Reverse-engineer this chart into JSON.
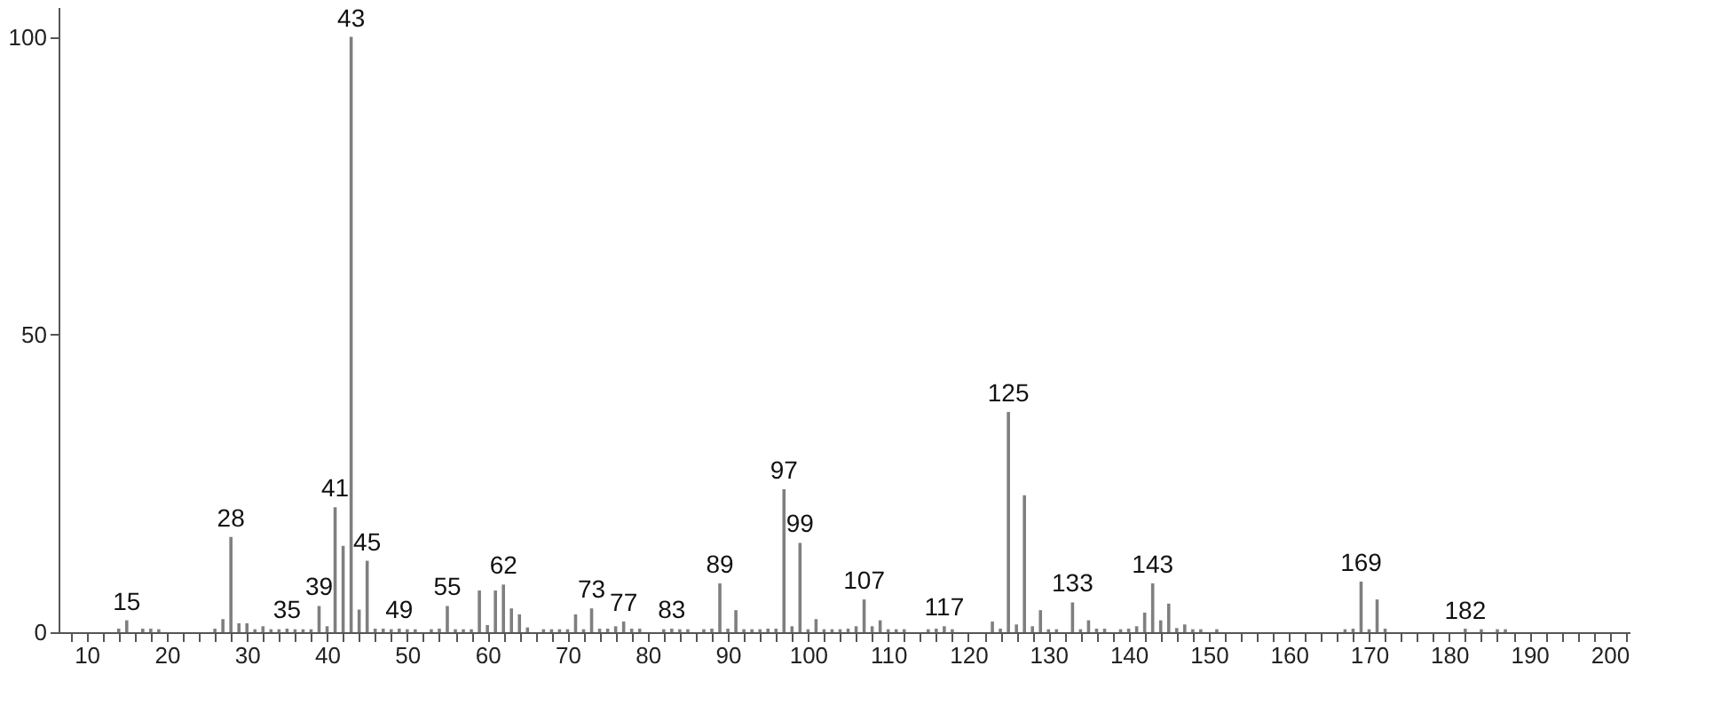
{
  "chart_data": {
    "type": "bar",
    "color": "#7f7f7f",
    "x": [
      14,
      15,
      17,
      18,
      19,
      26,
      27,
      28,
      29,
      30,
      31,
      32,
      33,
      34,
      35,
      36,
      37,
      38,
      39,
      40,
      41,
      42,
      43,
      44,
      45,
      46,
      47,
      48,
      49,
      50,
      51,
      53,
      54,
      55,
      56,
      57,
      58,
      59,
      60,
      61,
      62,
      63,
      64,
      65,
      67,
      68,
      69,
      70,
      71,
      72,
      73,
      74,
      75,
      76,
      77,
      78,
      79,
      82,
      83,
      84,
      85,
      87,
      88,
      89,
      90,
      91,
      92,
      93,
      94,
      95,
      96,
      97,
      98,
      99,
      100,
      101,
      102,
      103,
      104,
      105,
      106,
      107,
      108,
      109,
      110,
      111,
      112,
      115,
      116,
      117,
      118,
      123,
      124,
      125,
      126,
      127,
      128,
      129,
      130,
      131,
      133,
      134,
      135,
      136,
      137,
      139,
      140,
      141,
      142,
      143,
      144,
      145,
      146,
      147,
      148,
      149,
      151,
      167,
      168,
      169,
      170,
      171,
      172,
      182,
      184,
      186,
      187
    ],
    "values": [
      0.6,
      2,
      0.6,
      0.6,
      0.5,
      0.6,
      2.2,
      16,
      1.5,
      1.5,
      0.5,
      1,
      0.5,
      0.5,
      0.6,
      0.5,
      0.5,
      0.5,
      4.4,
      1,
      21,
      14.5,
      100,
      3.8,
      12,
      0.6,
      0.6,
      0.5,
      0.6,
      0.5,
      0.5,
      0.5,
      0.6,
      4.4,
      0.5,
      0.5,
      0.5,
      7,
      1.2,
      7,
      8,
      4,
      3,
      0.8,
      0.5,
      0.5,
      0.5,
      0.5,
      3,
      0.5,
      4,
      0.6,
      0.6,
      1,
      1.8,
      0.6,
      0.6,
      0.5,
      0.6,
      0.5,
      0.5,
      0.5,
      0.6,
      8.2,
      0.6,
      3.7,
      0.5,
      0.5,
      0.5,
      0.6,
      0.6,
      24,
      1,
      15,
      0.5,
      2.2,
      0.5,
      0.5,
      0.5,
      0.6,
      1,
      5.5,
      1,
      2,
      0.5,
      0.5,
      0.5,
      0.5,
      0.6,
      1,
      0.5,
      1.8,
      0.6,
      37,
      1.3,
      23,
      1,
      3.7,
      0.5,
      0.5,
      5,
      0.5,
      2,
      0.6,
      0.6,
      0.5,
      0.6,
      1,
      3.3,
      8.2,
      2,
      4.8,
      0.7,
      1.3,
      0.5,
      0.5,
      0.5,
      0.5,
      0.6,
      8.5,
      0.5,
      5.5,
      0.6,
      0.6,
      0.5,
      0.5,
      0.5
    ],
    "annotations": [
      {
        "text": "15",
        "x": 15,
        "y": 2
      },
      {
        "text": "28",
        "x": 28,
        "y": 16
      },
      {
        "text": "35",
        "x": 35,
        "y": 0.6
      },
      {
        "text": "39",
        "x": 39,
        "y": 4.4
      },
      {
        "text": "41",
        "x": 41,
        "y": 21
      },
      {
        "text": "43",
        "x": 43,
        "y": 100
      },
      {
        "text": "45",
        "x": 45,
        "y": 12
      },
      {
        "text": "49",
        "x": 49,
        "y": 0.6
      },
      {
        "text": "55",
        "x": 55,
        "y": 4.4
      },
      {
        "text": "62",
        "x": 62,
        "y": 8
      },
      {
        "text": "73",
        "x": 73,
        "y": 4
      },
      {
        "text": "77",
        "x": 77,
        "y": 1.8
      },
      {
        "text": "83",
        "x": 83,
        "y": 0.6
      },
      {
        "text": "89",
        "x": 89,
        "y": 8.2
      },
      {
        "text": "97",
        "x": 97,
        "y": 24
      },
      {
        "text": "99",
        "x": 99,
        "y": 15
      },
      {
        "text": "107",
        "x": 107,
        "y": 5.5
      },
      {
        "text": "117",
        "x": 117,
        "y": 1
      },
      {
        "text": "125",
        "x": 125,
        "y": 37
      },
      {
        "text": "133",
        "x": 133,
        "y": 5
      },
      {
        "text": "143",
        "x": 143,
        "y": 8.2
      },
      {
        "text": "169",
        "x": 169,
        "y": 8.5
      },
      {
        "text": "182",
        "x": 182,
        "y": 0.5
      }
    ],
    "xlim": [
      6.5,
      202.5
    ],
    "xticks": [
      {
        "value": 8,
        "label": null
      },
      10,
      {
        "value": 12,
        "label": null
      },
      {
        "value": 14,
        "label": null
      },
      {
        "value": 16,
        "label": null
      },
      {
        "value": 18,
        "label": null
      },
      20,
      {
        "value": 22,
        "label": null
      },
      {
        "value": 24,
        "label": null
      },
      {
        "value": 26,
        "label": null
      },
      {
        "value": 28,
        "label": null
      },
      30,
      {
        "value": 32,
        "label": null
      },
      {
        "value": 34,
        "label": null
      },
      {
        "value": 36,
        "label": null
      },
      {
        "value": 38,
        "label": null
      },
      40,
      {
        "value": 42,
        "label": null
      },
      {
        "value": 44,
        "label": null
      },
      {
        "value": 46,
        "label": null
      },
      {
        "value": 48,
        "label": null
      },
      50,
      {
        "value": 52,
        "label": null
      },
      {
        "value": 54,
        "label": null
      },
      {
        "value": 56,
        "label": null
      },
      {
        "value": 58,
        "label": null
      },
      60,
      {
        "value": 62,
        "label": null
      },
      {
        "value": 64,
        "label": null
      },
      {
        "value": 66,
        "label": null
      },
      {
        "value": 68,
        "label": null
      },
      70,
      {
        "value": 72,
        "label": null
      },
      {
        "value": 74,
        "label": null
      },
      {
        "value": 76,
        "label": null
      },
      {
        "value": 78,
        "label": null
      },
      80,
      {
        "value": 82,
        "label": null
      },
      {
        "value": 84,
        "label": null
      },
      {
        "value": 86,
        "label": null
      },
      {
        "value": 88,
        "label": null
      },
      90,
      {
        "value": 92,
        "label": null
      },
      {
        "value": 94,
        "label": null
      },
      {
        "value": 96,
        "label": null
      },
      {
        "value": 98,
        "label": null
      },
      100,
      {
        "value": 102,
        "label": null
      },
      {
        "value": 104,
        "label": null
      },
      {
        "value": 106,
        "label": null
      },
      {
        "value": 108,
        "label": null
      },
      110,
      {
        "value": 112,
        "label": null
      },
      {
        "value": 114,
        "label": null
      },
      {
        "value": 116,
        "label": null
      },
      {
        "value": 118,
        "label": null
      },
      120,
      {
        "value": 122,
        "label": null
      },
      {
        "value": 124,
        "label": null
      },
      {
        "value": 126,
        "label": null
      },
      {
        "value": 128,
        "label": null
      },
      130,
      {
        "value": 132,
        "label": null
      },
      {
        "value": 134,
        "label": null
      },
      {
        "value": 136,
        "label": null
      },
      {
        "value": 138,
        "label": null
      },
      140,
      {
        "value": 142,
        "label": null
      },
      {
        "value": 144,
        "label": null
      },
      {
        "value": 146,
        "label": null
      },
      {
        "value": 148,
        "label": null
      },
      150,
      {
        "value": 152,
        "label": null
      },
      {
        "value": 154,
        "label": null
      },
      {
        "value": 156,
        "label": null
      },
      {
        "value": 158,
        "label": null
      },
      160,
      {
        "value": 162,
        "label": null
      },
      {
        "value": 164,
        "label": null
      },
      {
        "value": 166,
        "label": null
      },
      {
        "value": 168,
        "label": null
      },
      170,
      {
        "value": 172,
        "label": null
      },
      {
        "value": 174,
        "label": null
      },
      {
        "value": 176,
        "label": null
      },
      {
        "value": 178,
        "label": null
      },
      180,
      {
        "value": 182,
        "label": null
      },
      {
        "value": 184,
        "label": null
      },
      {
        "value": 186,
        "label": null
      },
      {
        "value": 188,
        "label": null
      },
      190,
      {
        "value": 192,
        "label": null
      },
      {
        "value": 194,
        "label": null
      },
      {
        "value": 196,
        "label": null
      },
      {
        "value": 198,
        "label": null
      },
      200,
      {
        "value": 202,
        "label": null
      }
    ],
    "ylim": [
      0,
      105
    ],
    "yticks": [
      0,
      50,
      100
    ],
    "grid": false
  }
}
